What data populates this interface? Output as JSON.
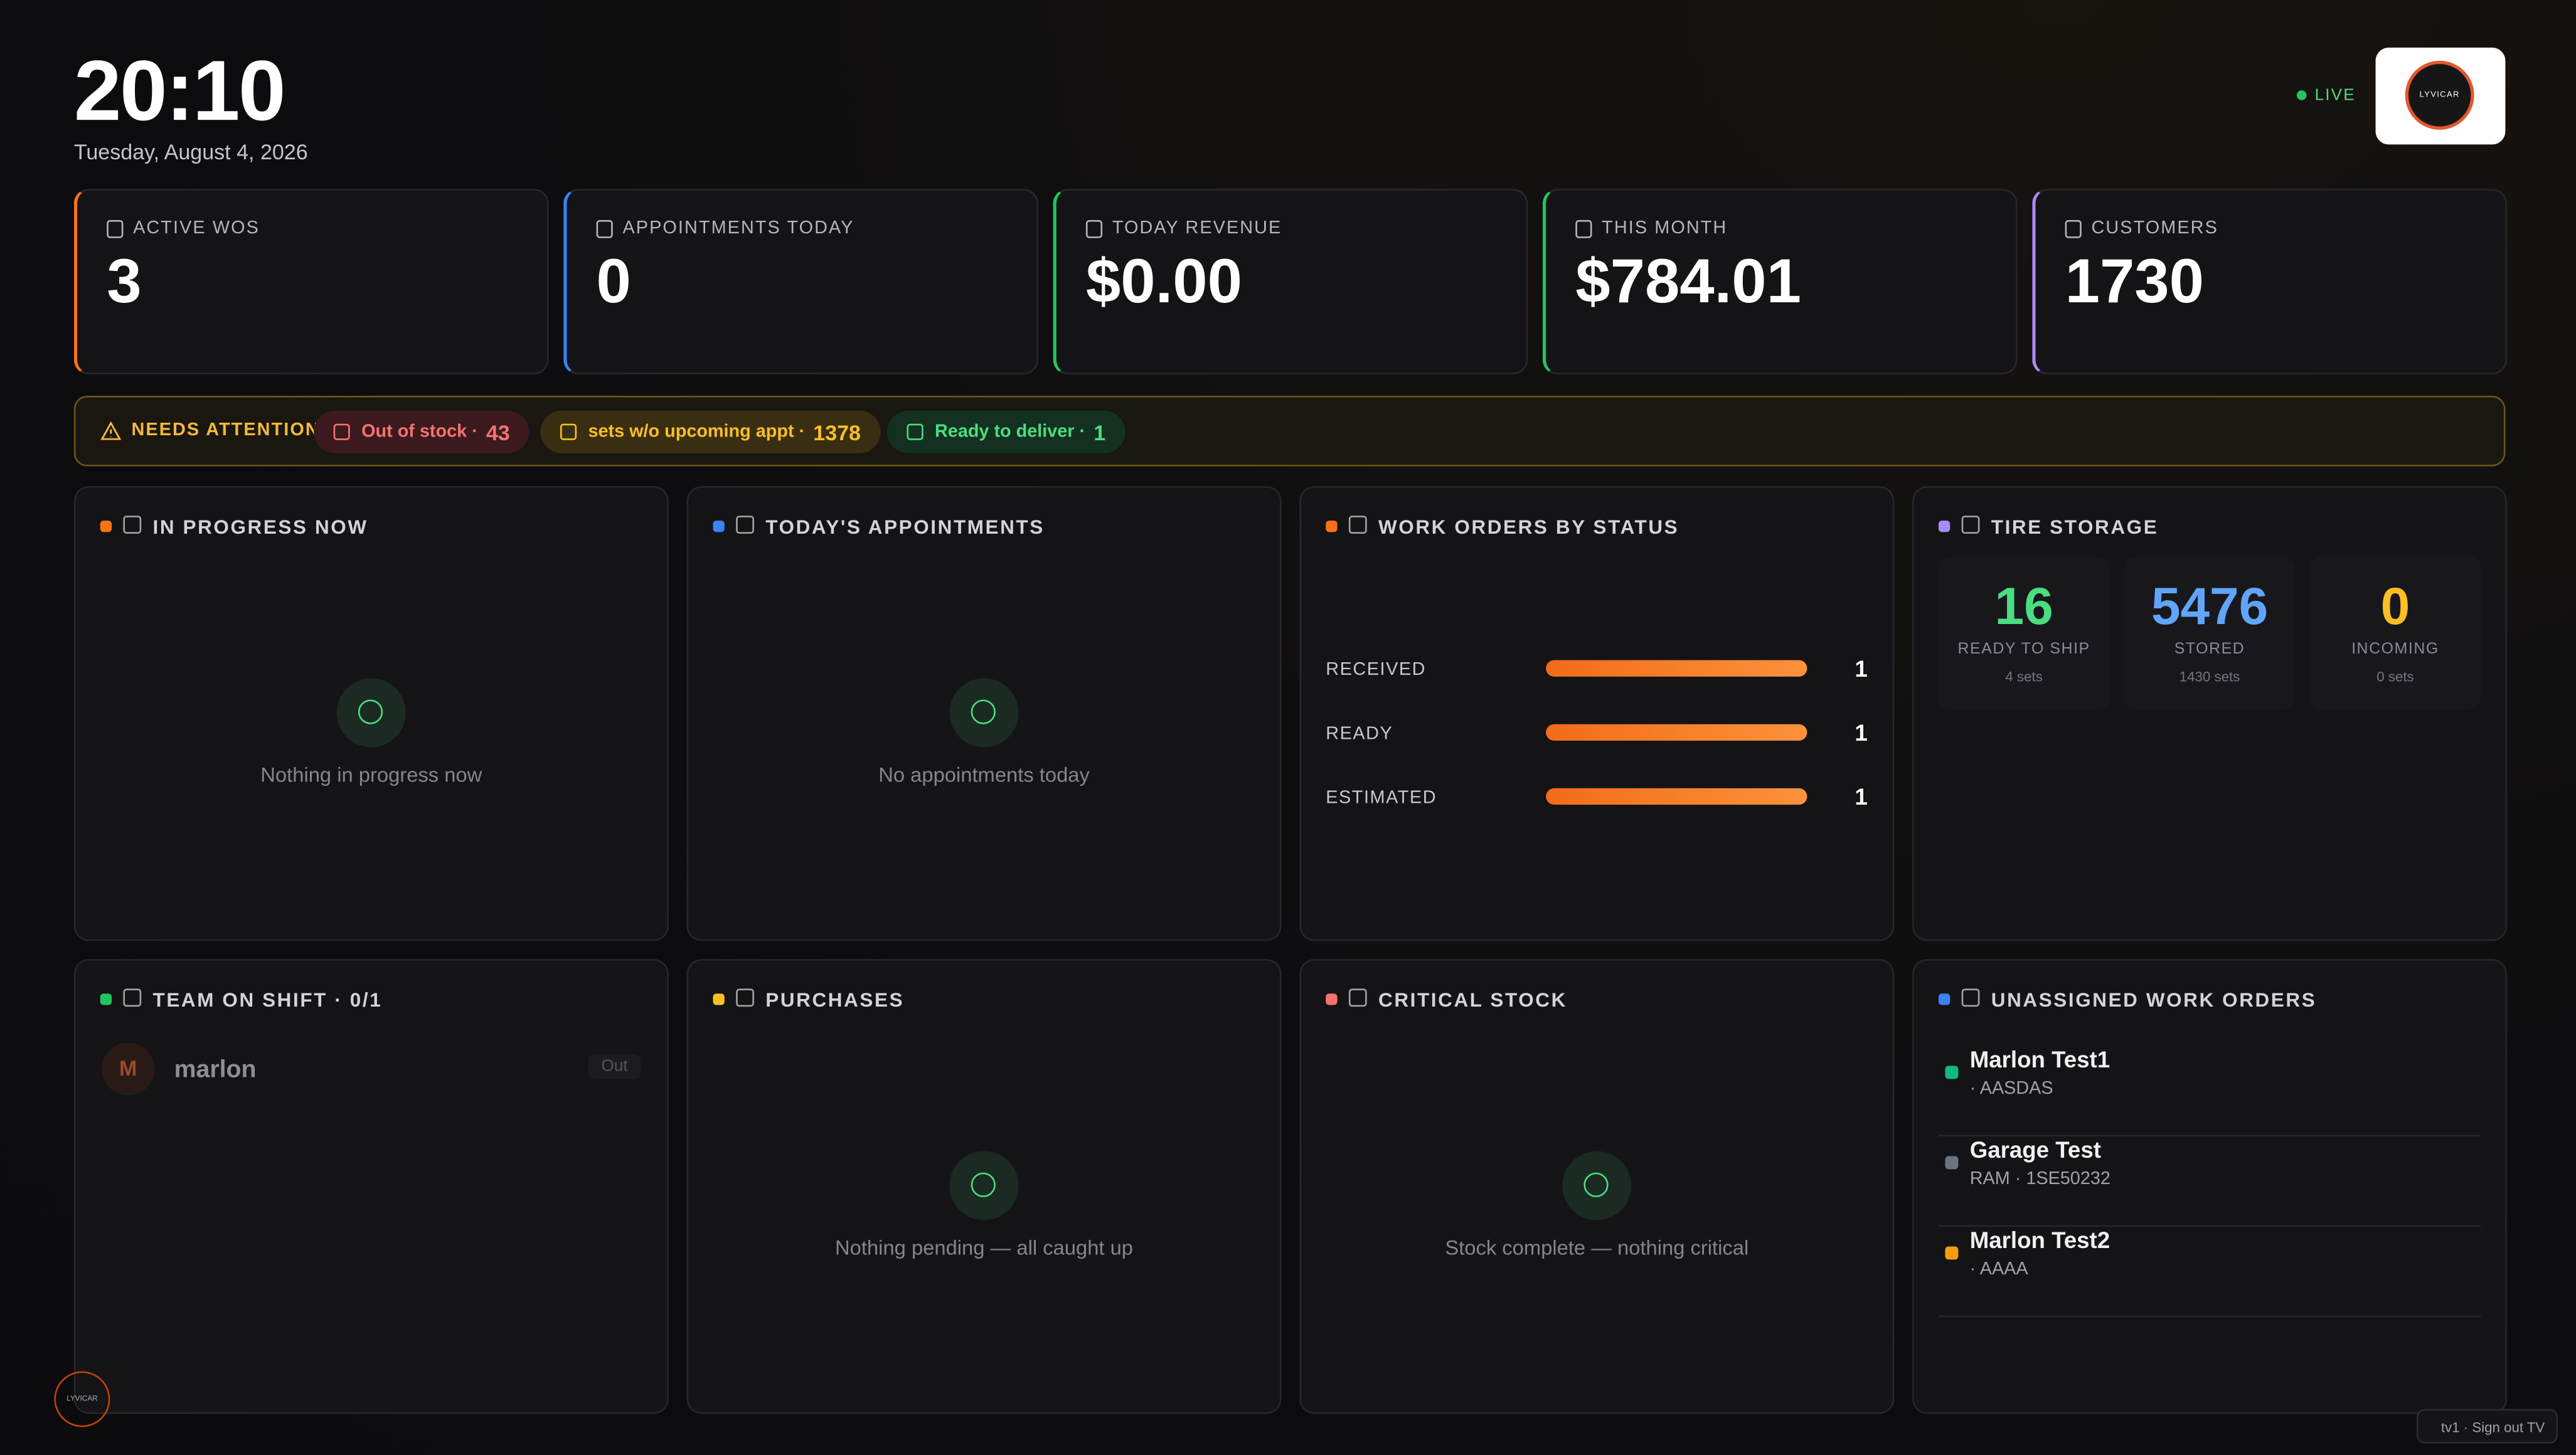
{
  "header": {
    "time": "20:10",
    "date": "Tuesday, August 4, 2026",
    "live": "LIVE",
    "logo": "LYVICAR"
  },
  "kpis": [
    {
      "label": "ACTIVE WOS",
      "value": 3
    },
    {
      "label": "APPOINTMENTS TODAY",
      "value": 0
    },
    {
      "label": "TODAY REVENUE",
      "value": "$0.00"
    },
    {
      "label": "THIS MONTH",
      "value": "$784.01"
    },
    {
      "label": "CUSTOMERS",
      "value": 1730
    }
  ],
  "attention": {
    "title": "NEEDS ATTENTION",
    "items": [
      {
        "label": "Out of stock ·",
        "count": 43
      },
      {
        "label": "sets w/o upcoming appt ·",
        "count": 1378
      },
      {
        "label": "Ready to deliver ·",
        "count": 1
      }
    ]
  },
  "in_progress": {
    "title": "IN PROGRESS NOW",
    "empty": "Nothing in progress now"
  },
  "appointments": {
    "title": "TODAY'S APPOINTMENTS",
    "empty": "No appointments today"
  },
  "work_orders": {
    "title": "WORK ORDERS BY STATUS",
    "categories": [
      "RECEIVED",
      "READY",
      "ESTIMATED"
    ],
    "values": [
      1,
      1,
      1
    ]
  },
  "tire_storage": {
    "title": "TIRE STORAGE",
    "stats": [
      {
        "value": 16,
        "label": "READY TO SHIP",
        "sub": "4 sets",
        "color": "#4ade80"
      },
      {
        "value": 5476,
        "label": "STORED",
        "sub": "1430 sets",
        "color": "#60a5fa"
      },
      {
        "value": 0,
        "label": "INCOMING",
        "sub": "0 sets",
        "color": "#fbbf24"
      }
    ]
  },
  "team": {
    "title": "TEAM ON SHIFT · 0/1",
    "members": [
      {
        "initial": "M",
        "name": "marlon",
        "status": "Out"
      }
    ]
  },
  "purchases": {
    "title": "PURCHASES",
    "empty": "Nothing pending — all caught up"
  },
  "critical": {
    "title": "CRITICAL STOCK",
    "empty": "Stock complete — nothing critical"
  },
  "unassigned": {
    "title": "UNASSIGNED WORK ORDERS",
    "items": [
      {
        "name": "Marlon Test1",
        "detail": "· AASDAS",
        "color": "#10b981"
      },
      {
        "name": "Garage Test",
        "detail": "RAM · 1SE50232",
        "color": "#6b7280"
      },
      {
        "name": "Marlon Test2",
        "detail": "· AAAA",
        "color": "#f59e0b"
      }
    ]
  },
  "footer": {
    "logo": "LYVICAR",
    "signout": "tv1 · Sign out TV"
  }
}
